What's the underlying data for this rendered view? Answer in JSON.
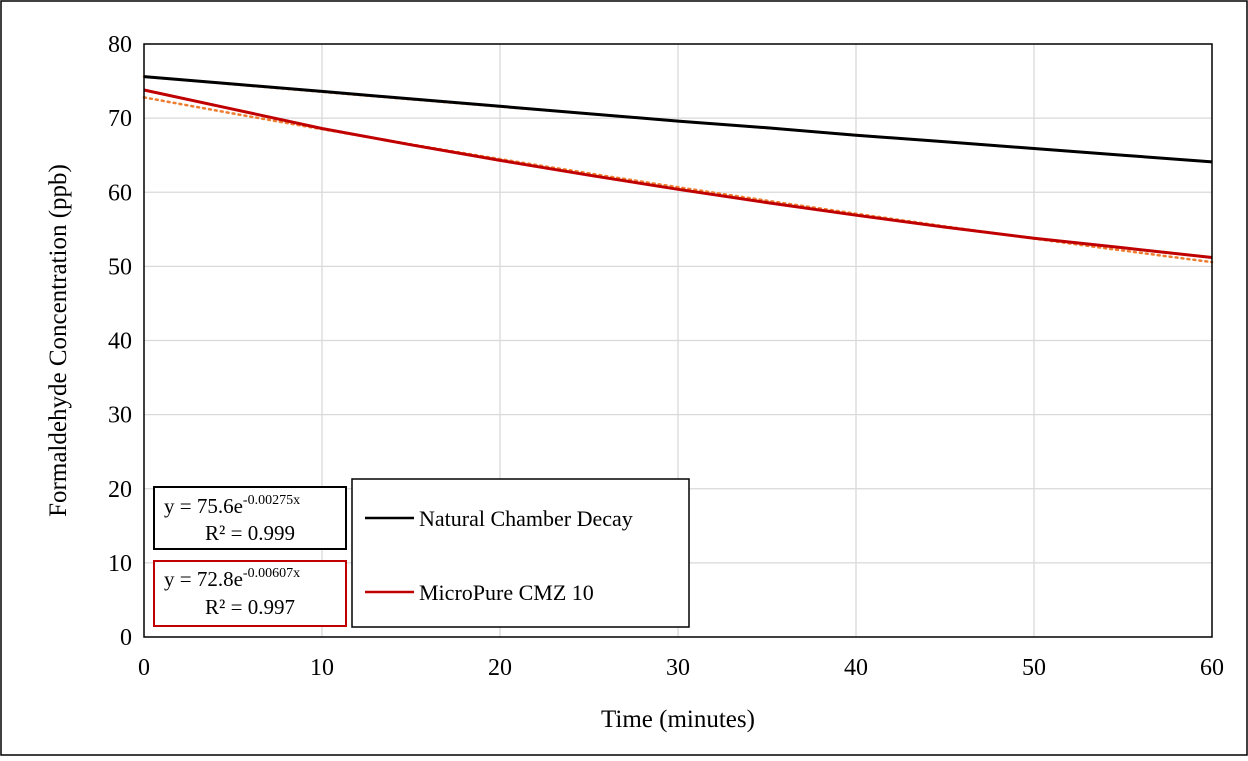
{
  "chart_data": {
    "type": "line",
    "xlabel": "Time (minutes)",
    "ylabel": "Formaldehyde Concentration (ppb)",
    "xlim": [
      0,
      60
    ],
    "ylim": [
      0,
      80
    ],
    "x_ticks": [
      "0",
      "10",
      "20",
      "30",
      "40",
      "50",
      "60"
    ],
    "y_ticks": [
      "0",
      "10",
      "20",
      "30",
      "40",
      "50",
      "60",
      "70",
      "80"
    ],
    "grid": true,
    "legend_position": "bottom-center",
    "series": [
      {
        "name": "Natural Chamber Decay",
        "color": "#000000",
        "x": [
          0,
          5,
          10,
          15,
          20,
          25,
          30,
          35,
          40,
          45,
          50,
          55,
          60
        ],
        "y": [
          75.6,
          74.6,
          73.6,
          72.6,
          71.6,
          70.6,
          69.6,
          68.7,
          67.7,
          66.8,
          65.9,
          65.0,
          64.1
        ],
        "trendline": {
          "color": "#ed7d31",
          "equation_base": "y = 75.6e",
          "equation_exp": "-0.00275x",
          "r2": "R² = 0.999",
          "box_color": "#000000"
        }
      },
      {
        "name": "MicroPure CMZ 10",
        "color": "#c00000",
        "x": [
          0,
          5,
          10,
          15,
          20,
          25,
          30,
          35,
          40,
          45,
          50,
          55,
          60
        ],
        "y": [
          73.8,
          71.2,
          68.6,
          66.4,
          64.3,
          62.3,
          60.4,
          58.6,
          56.9,
          55.3,
          53.8,
          52.5,
          51.2
        ],
        "trendline": {
          "color": "#ed7d31",
          "equation_base": "y = 72.8e",
          "equation_exp": "-0.00607x",
          "r2": "R² = 0.997",
          "box_color": "#c00000"
        }
      }
    ]
  }
}
